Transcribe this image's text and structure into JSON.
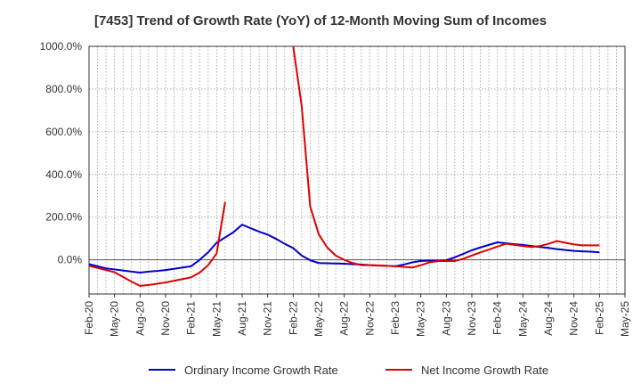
{
  "title": "[7453]  Trend of Growth Rate (YoY) of 12-Month Moving Sum of Incomes",
  "legend": {
    "ordinary_label": "Ordinary Income Growth Rate",
    "net_label": "Net Income Growth Rate"
  },
  "colors": {
    "ordinary": "#0000cc",
    "net": "#dd0000",
    "grid": "#999999",
    "axis": "#333333",
    "zero_line": "#555555"
  },
  "chart_data": {
    "type": "line",
    "title": "[7453]  Trend of Growth Rate (YoY) of 12-Month Moving Sum of Incomes",
    "xlabel": "",
    "ylabel": "",
    "x_ticks": [
      "Feb-20",
      "May-20",
      "Aug-20",
      "Nov-20",
      "Feb-21",
      "May-21",
      "Aug-21",
      "Nov-21",
      "Feb-22",
      "May-22",
      "Aug-22",
      "Nov-22",
      "Feb-23",
      "May-23",
      "Aug-23",
      "Nov-23",
      "Feb-24",
      "May-24",
      "Aug-24",
      "Nov-24",
      "Feb-25",
      "May-25"
    ],
    "y_ticks": [
      "0.0%",
      "200.0%",
      "400.0%",
      "600.0%",
      "800.0%",
      "1000.0%"
    ],
    "y_tick_values": [
      0,
      200,
      400,
      600,
      800,
      1000
    ],
    "ylim": [
      -160,
      1000
    ],
    "grid": true,
    "legend_position": "bottom",
    "series": [
      {
        "name": "Ordinary Income Growth Rate",
        "color": "#0000cc",
        "points": [
          [
            "Feb-20",
            -20
          ],
          [
            "Mar-20",
            -30
          ],
          [
            "Apr-20",
            -40
          ],
          [
            "May-20",
            -45
          ],
          [
            "Jun-20",
            -50
          ],
          [
            "Jul-20",
            -55
          ],
          [
            "Aug-20",
            -60
          ],
          [
            "Sep-20",
            -55
          ],
          [
            "Oct-20",
            -52
          ],
          [
            "Nov-20",
            -48
          ],
          [
            "Dec-20",
            -42
          ],
          [
            "Jan-21",
            -36
          ],
          [
            "Feb-21",
            -30
          ],
          [
            "Mar-21",
            0
          ],
          [
            "Apr-21",
            35
          ],
          [
            "May-21",
            80
          ],
          [
            "Jun-21",
            105
          ],
          [
            "Jul-21",
            130
          ],
          [
            "Aug-21",
            165
          ],
          [
            "Sep-21",
            148
          ],
          [
            "Oct-21",
            132
          ],
          [
            "Nov-21",
            118
          ],
          [
            "Dec-21",
            98
          ],
          [
            "Jan-22",
            75
          ],
          [
            "Feb-22",
            55
          ],
          [
            "Mar-22",
            20
          ],
          [
            "Apr-22",
            -2
          ],
          [
            "May-22",
            -15
          ],
          [
            "Jun-22",
            -16
          ],
          [
            "Jul-22",
            -17
          ],
          [
            "Aug-22",
            -18
          ],
          [
            "Sep-22",
            -20
          ],
          [
            "Oct-22",
            -22
          ],
          [
            "Nov-22",
            -25
          ],
          [
            "Dec-22",
            -27
          ],
          [
            "Jan-23",
            -28
          ],
          [
            "Feb-23",
            -30
          ],
          [
            "Mar-23",
            -22
          ],
          [
            "Apr-23",
            -12
          ],
          [
            "May-23",
            -5
          ],
          [
            "Jun-23",
            -4
          ],
          [
            "Jul-23",
            -4
          ],
          [
            "Aug-23",
            -2
          ],
          [
            "Sep-23",
            12
          ],
          [
            "Oct-23",
            28
          ],
          [
            "Nov-23",
            45
          ],
          [
            "Dec-23",
            58
          ],
          [
            "Jan-24",
            70
          ],
          [
            "Feb-24",
            82
          ],
          [
            "Mar-24",
            78
          ],
          [
            "Apr-24",
            73
          ],
          [
            "May-24",
            70
          ],
          [
            "Jun-24",
            65
          ],
          [
            "Jul-24",
            60
          ],
          [
            "Aug-24",
            56
          ],
          [
            "Sep-24",
            50
          ],
          [
            "Oct-24",
            46
          ],
          [
            "Nov-24",
            42
          ],
          [
            "Dec-24",
            40
          ],
          [
            "Jan-25",
            38
          ],
          [
            "Feb-25",
            35
          ]
        ]
      },
      {
        "name": "Net Income Growth Rate",
        "color": "#dd0000",
        "points": [
          [
            "Feb-20",
            -28
          ],
          [
            "Mar-20",
            -38
          ],
          [
            "Apr-20",
            -48
          ],
          [
            "May-20",
            -58
          ],
          [
            "Jun-20",
            -80
          ],
          [
            "Jul-20",
            -102
          ],
          [
            "Aug-20",
            -122
          ],
          [
            "Sep-20",
            -118
          ],
          [
            "Oct-20",
            -112
          ],
          [
            "Nov-20",
            -106
          ],
          [
            "Dec-20",
            -98
          ],
          [
            "Jan-21",
            -90
          ],
          [
            "Feb-21",
            -82
          ],
          [
            "Mar-21",
            -60
          ],
          [
            "Apr-21",
            -25
          ],
          [
            "May-21",
            30
          ],
          [
            "Jun-21",
            272
          ]
        ]
      },
      {
        "name": "Net Income Growth Rate",
        "color": "#dd0000",
        "points": [
          [
            "Feb-22",
            1000
          ],
          [
            "Mar-22",
            720
          ],
          [
            "Apr-22",
            250
          ],
          [
            "May-22",
            120
          ],
          [
            "Jun-22",
            58
          ],
          [
            "Jul-22",
            20
          ],
          [
            "Aug-22",
            0
          ],
          [
            "Sep-22",
            -15
          ],
          [
            "Oct-22",
            -25
          ],
          [
            "Nov-22",
            -25
          ],
          [
            "Dec-22",
            -26
          ],
          [
            "Jan-23",
            -28
          ],
          [
            "Feb-23",
            -30
          ],
          [
            "Mar-23",
            -33
          ],
          [
            "Apr-23",
            -36
          ],
          [
            "May-23",
            -25
          ],
          [
            "Jun-23",
            -12
          ],
          [
            "Jul-23",
            -6
          ],
          [
            "Aug-23",
            -5
          ],
          [
            "Sep-23",
            -6
          ],
          [
            "Oct-23",
            5
          ],
          [
            "Nov-23",
            20
          ],
          [
            "Dec-23",
            35
          ],
          [
            "Jan-24",
            48
          ],
          [
            "Feb-24",
            62
          ],
          [
            "Mar-24",
            75
          ],
          [
            "Apr-24",
            70
          ],
          [
            "May-24",
            65
          ],
          [
            "Jun-24",
            60
          ],
          [
            "Jul-24",
            65
          ],
          [
            "Aug-24",
            75
          ],
          [
            "Sep-24",
            88
          ],
          [
            "Oct-24",
            80
          ],
          [
            "Nov-24",
            72
          ],
          [
            "Dec-24",
            68
          ],
          [
            "Jan-25",
            68
          ],
          [
            "Feb-25",
            68
          ]
        ]
      }
    ]
  }
}
